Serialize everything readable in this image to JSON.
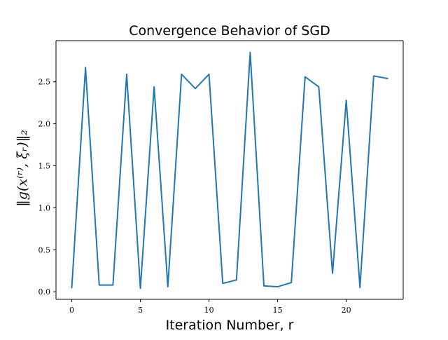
{
  "chart_data": {
    "type": "line",
    "title": "Convergence Behavior of SGD",
    "xlabel": "Iteration Number, r",
    "ylabel": "‖g(x⁽ʳ⁾, ξᵣ)‖₂",
    "x": [
      0,
      1,
      2,
      3,
      4,
      5,
      6,
      7,
      8,
      9,
      10,
      11,
      12,
      13,
      14,
      15,
      16,
      17,
      18,
      19,
      20,
      21,
      22,
      23
    ],
    "series": [
      {
        "values": [
          0.05,
          2.67,
          0.08,
          0.08,
          2.59,
          0.04,
          2.44,
          0.06,
          2.59,
          2.42,
          2.59,
          0.1,
          0.14,
          2.85,
          0.07,
          0.06,
          0.11,
          2.56,
          2.44,
          0.22,
          2.28,
          0.05,
          2.57,
          2.54
        ],
        "color": "#1f77b4"
      }
    ],
    "xlim": [
      -1.15,
      24.15
    ],
    "ylim": [
      -0.09,
      2.99
    ],
    "xticks": [
      0,
      5,
      10,
      15,
      20
    ],
    "yticks": [
      0.0,
      0.5,
      1.0,
      1.5,
      2.0,
      2.5
    ],
    "xtick_labels": [
      "0",
      "5",
      "10",
      "15",
      "20"
    ],
    "ytick_labels": [
      "0.0",
      "0.5",
      "1.0",
      "1.5",
      "2.0",
      "2.5"
    ],
    "grid": false,
    "legend": false
  }
}
